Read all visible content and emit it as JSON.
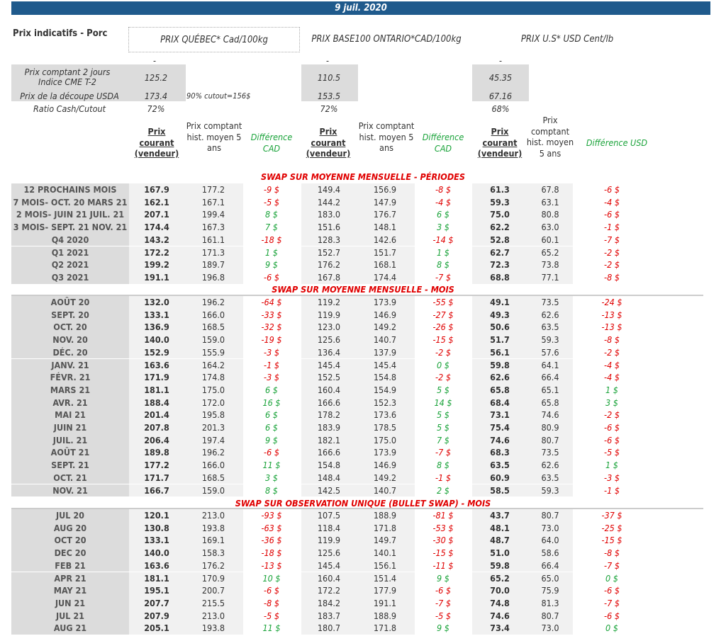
{
  "date": "9 juil. 2020",
  "title": "Prix indicatifs - Porc",
  "headers": {
    "quebec": "PRIX QUÉBEC* Cad/100kg",
    "ontario": "PRIX BASE100 ONTARIO*CAD/100kg",
    "us": "PRIX U.S* USD Cent/lb"
  },
  "dash": "-",
  "summary": {
    "cash_label": "Prix comptant 2 jours Indice CME T-2",
    "cutout_label": "Prix de la découpe USDA",
    "ratio_label": "Ratio Cash/Cutout",
    "cutout_note": "90% cutout=156$",
    "quebec": {
      "cash": "125.2",
      "cutout": "173.4",
      "ratio": "72%"
    },
    "ontario": {
      "cash": "110.5",
      "cutout": "153.5",
      "ratio": "72%"
    },
    "us": {
      "cash": "45.35",
      "cutout": "67.16",
      "ratio": "68%"
    }
  },
  "columns": {
    "prix_courant": "Prix courant (vendeur)",
    "hist": "Prix comptant hist. moyen 5 ans",
    "hist_us": "Prix comptant hist. moyen 5 ans",
    "diff_cad": "Différence CAD",
    "diff_usd": "Différence USD"
  },
  "sections": [
    {
      "title": "SWAP SUR MOYENNE MENSUELLE - PÉRIODES",
      "rows": [
        [
          "12 PROCHAINS MOIS",
          "167.9",
          "177.2",
          "-9 $",
          "149.4",
          "156.9",
          "-8 $",
          "61.3",
          "67.8",
          "-6 $"
        ],
        [
          "7 MOIS- OCT. 20 MARS 21",
          "162.1",
          "167.1",
          "-5 $",
          "144.2",
          "147.9",
          "-4 $",
          "59.3",
          "63.1",
          "-4 $"
        ],
        [
          "2 MOIS- JUIN 21 JUIL. 21",
          "207.1",
          "199.4",
          "8 $",
          "183.0",
          "176.7",
          "6 $",
          "75.0",
          "80.8",
          "-6 $"
        ],
        [
          "3 MOIS- SEPT. 21 NOV. 21",
          "174.4",
          "167.3",
          "7 $",
          "151.6",
          "148.1",
          "3 $",
          "62.2",
          "63.0",
          "-1 $"
        ],
        [
          "Q4 2020",
          "143.2",
          "161.1",
          "-18 $",
          "128.3",
          "142.6",
          "-14 $",
          "52.8",
          "60.1",
          "-7 $"
        ],
        [
          "Q1 2021",
          "172.2",
          "171.3",
          "1 $",
          "152.7",
          "151.7",
          "1 $",
          "62.7",
          "65.2",
          "-2 $"
        ],
        [
          "Q2 2021",
          "199.2",
          "189.7",
          "9 $",
          "176.2",
          "168.1",
          "8 $",
          "72.3",
          "73.8",
          "-2 $"
        ],
        [
          "Q3 2021",
          "191.1",
          "196.8",
          "-6 $",
          "167.8",
          "174.4",
          "-7 $",
          "68.8",
          "77.1",
          "-8 $"
        ]
      ]
    },
    {
      "title": "SWAP SUR MOYENNE MENSUELLE - MOIS",
      "rows": [
        [
          "AOÛT 20",
          "132.0",
          "196.2",
          "-64 $",
          "119.2",
          "173.9",
          "-55 $",
          "49.1",
          "73.5",
          "-24 $"
        ],
        [
          "SEPT. 20",
          "133.1",
          "166.0",
          "-33 $",
          "119.9",
          "146.9",
          "-27 $",
          "49.3",
          "62.6",
          "-13 $"
        ],
        [
          "OCT. 20",
          "136.9",
          "168.5",
          "-32 $",
          "123.0",
          "149.2",
          "-26 $",
          "50.6",
          "63.5",
          "-13 $"
        ],
        [
          "NOV. 20",
          "140.0",
          "159.0",
          "-19 $",
          "125.6",
          "140.7",
          "-15 $",
          "51.7",
          "59.3",
          "-8 $"
        ],
        [
          "DÉC. 20",
          "152.9",
          "155.9",
          "-3 $",
          "136.4",
          "137.9",
          "-2 $",
          "56.1",
          "57.6",
          "-2 $"
        ],
        [
          "JANV. 21",
          "163.6",
          "164.2",
          "-1 $",
          "145.4",
          "145.4",
          "0 $",
          "59.8",
          "64.1",
          "-4 $"
        ],
        [
          "FÉVR. 21",
          "171.9",
          "174.8",
          "-3 $",
          "152.5",
          "154.8",
          "-2 $",
          "62.6",
          "66.4",
          "-4 $"
        ],
        [
          "MARS 21",
          "181.1",
          "175.0",
          "6 $",
          "160.4",
          "154.9",
          "5 $",
          "65.8",
          "65.1",
          "1 $"
        ],
        [
          "AVR. 21",
          "188.4",
          "172.0",
          "16 $",
          "166.6",
          "152.3",
          "14 $",
          "68.4",
          "65.8",
          "3 $"
        ],
        [
          "MAI 21",
          "201.4",
          "195.8",
          "6 $",
          "178.2",
          "173.6",
          "5 $",
          "73.1",
          "74.6",
          "-2 $"
        ],
        [
          "JUIN 21",
          "207.8",
          "201.3",
          "6 $",
          "183.9",
          "178.5",
          "5 $",
          "75.4",
          "80.9",
          "-6 $"
        ],
        [
          "JUIL. 21",
          "206.4",
          "197.4",
          "9 $",
          "182.1",
          "175.0",
          "7 $",
          "74.6",
          "80.7",
          "-6 $"
        ],
        [
          "AOÛT 21",
          "189.8",
          "196.2",
          "-6 $",
          "166.6",
          "173.9",
          "-7 $",
          "68.3",
          "73.5",
          "-5 $"
        ],
        [
          "SEPT. 21",
          "177.2",
          "166.0",
          "11 $",
          "154.8",
          "146.9",
          "8 $",
          "63.5",
          "62.6",
          "1 $"
        ],
        [
          "OCT. 21",
          "171.7",
          "168.5",
          "3 $",
          "148.4",
          "149.2",
          "-1 $",
          "60.9",
          "63.5",
          "-3 $"
        ],
        [
          "NOV. 21",
          "166.7",
          "159.0",
          "8 $",
          "142.5",
          "140.7",
          "2 $",
          "58.5",
          "59.3",
          "-1 $"
        ]
      ]
    },
    {
      "title": "SWAP SUR OBSERVATION UNIQUE (BULLET SWAP) - MOIS",
      "rows": [
        [
          "JUL 20",
          "120.1",
          "213.0",
          "-93 $",
          "107.5",
          "188.9",
          "-81 $",
          "43.7",
          "80.7",
          "-37 $"
        ],
        [
          "AUG 20",
          "130.8",
          "193.8",
          "-63 $",
          "118.4",
          "171.8",
          "-53 $",
          "48.1",
          "73.0",
          "-25 $"
        ],
        [
          "OCT 20",
          "133.1",
          "169.1",
          "-36 $",
          "119.9",
          "149.7",
          "-30 $",
          "48.7",
          "64.0",
          "-15 $"
        ],
        [
          "DEC 20",
          "140.0",
          "158.3",
          "-18 $",
          "125.6",
          "140.1",
          "-15 $",
          "51.0",
          "58.6",
          "-8 $"
        ],
        [
          "FEB 21",
          "163.6",
          "176.2",
          "-13 $",
          "145.4",
          "156.1",
          "-11 $",
          "59.8",
          "66.4",
          "-7 $"
        ],
        [
          "APR 21",
          "181.1",
          "170.9",
          "10 $",
          "160.4",
          "151.4",
          "9 $",
          "65.2",
          "65.0",
          "0 $"
        ],
        [
          "MAY 21",
          "195.1",
          "200.7",
          "-6 $",
          "172.2",
          "177.9",
          "-6 $",
          "70.0",
          "75.9",
          "-6 $"
        ],
        [
          "JUN 21",
          "207.7",
          "215.5",
          "-8 $",
          "184.2",
          "191.1",
          "-7 $",
          "74.8",
          "81.3",
          "-7 $"
        ],
        [
          "JUL 21",
          "207.9",
          "213.0",
          "-5 $",
          "183.7",
          "188.9",
          "-5 $",
          "74.6",
          "80.7",
          "-6 $"
        ],
        [
          "AUG 21",
          "205.1",
          "193.8",
          "11 $",
          "180.7",
          "171.8",
          "9 $",
          "73.4",
          "73.0",
          "0 $"
        ]
      ]
    }
  ],
  "colors": {
    "bar": "#1f5a8c",
    "negative": "#e00000",
    "positive": "#1aa33a"
  }
}
